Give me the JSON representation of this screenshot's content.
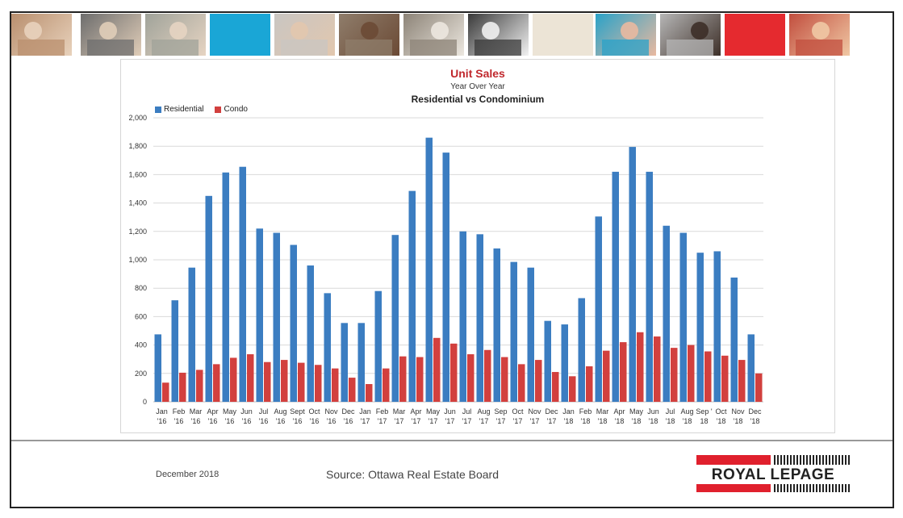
{
  "header": {
    "photos": [
      {
        "name": "family-photo",
        "bg": "#b98f6e",
        "fg": "#e8d2bc"
      },
      {
        "name": "phone-photo",
        "bg": "#6d6d6d",
        "fg": "#e0cdb8"
      },
      {
        "name": "couple-house-photo",
        "bg": "#a0a39a",
        "fg": "#e6d4c2"
      },
      {
        "name": "blue-tile",
        "bg": "#1aa6d6",
        "fg": "#1aa6d6"
      },
      {
        "name": "woman-phone-photo",
        "bg": "#c9c6c2",
        "fg": "#e2c7ae"
      },
      {
        "name": "couple-photo",
        "bg": "#8f7d6b",
        "fg": "#6b4a35"
      },
      {
        "name": "house-photo",
        "bg": "#8d8478",
        "fg": "#ece7df"
      },
      {
        "name": "signing-photo",
        "bg": "#3a3a3a",
        "fg": "#f1f1f1"
      },
      {
        "name": "beige-tile",
        "bg": "#ece4d6",
        "fg": "#ece4d6"
      },
      {
        "name": "pool-photo",
        "bg": "#2aa2c8",
        "fg": "#e9b9a0"
      },
      {
        "name": "meeting-photo",
        "bg": "#b6b6b6",
        "fg": "#3d2f28"
      },
      {
        "name": "red-tile",
        "bg": "#e52a2f",
        "fg": "#e52a2f"
      },
      {
        "name": "kids-photo",
        "bg": "#c24e3e",
        "fg": "#f0c8a4"
      }
    ]
  },
  "chart": {
    "title": "Unit Sales",
    "subtitle": "Year Over Year",
    "subtitle2": "Residential vs Condominium",
    "legend": [
      {
        "label": "Residential",
        "color": "#3b7dc1"
      },
      {
        "label": "Condo",
        "color": "#d2403e"
      }
    ]
  },
  "chart_data": {
    "type": "bar",
    "categories": [
      [
        "Jan",
        "'16"
      ],
      [
        "Feb",
        "'16"
      ],
      [
        "Mar",
        "'16"
      ],
      [
        "Apr",
        "'16"
      ],
      [
        "May",
        "'16"
      ],
      [
        "Jun",
        "'16"
      ],
      [
        "Jul",
        "'16"
      ],
      [
        "Aug",
        "'16"
      ],
      [
        "Sept",
        "'16"
      ],
      [
        "Oct",
        "'16"
      ],
      [
        "Nov",
        "'16"
      ],
      [
        "Dec",
        "'16"
      ],
      [
        "Jan",
        "'17"
      ],
      [
        "Feb",
        "'17"
      ],
      [
        "Mar",
        "'17"
      ],
      [
        "Apr",
        "'17"
      ],
      [
        "May",
        "'17"
      ],
      [
        "Jun",
        "'17"
      ],
      [
        "Jul",
        "'17"
      ],
      [
        "Aug",
        "'17"
      ],
      [
        "Sep",
        "'17"
      ],
      [
        "Oct",
        "'17"
      ],
      [
        "Nov",
        "'17"
      ],
      [
        "Dec",
        "'17"
      ],
      [
        "Jan",
        "'18"
      ],
      [
        "Feb",
        "'18"
      ],
      [
        "Mar",
        "'18"
      ],
      [
        "Apr",
        "'18"
      ],
      [
        "May",
        "'18"
      ],
      [
        "Jun",
        "'18"
      ],
      [
        "Jul",
        "'18"
      ],
      [
        "Aug",
        "'18"
      ],
      [
        "Sep '",
        "18"
      ],
      [
        "Oct",
        "'18"
      ],
      [
        "Nov",
        "'18"
      ],
      [
        "Dec",
        "'18"
      ]
    ],
    "series": [
      {
        "name": "Residential",
        "color": "#3b7dc1",
        "values": [
          475,
          715,
          945,
          1450,
          1615,
          1655,
          1220,
          1190,
          1105,
          960,
          765,
          555,
          555,
          780,
          1175,
          1485,
          1860,
          1755,
          1200,
          1180,
          1080,
          985,
          945,
          570,
          545,
          730,
          1305,
          1620,
          1795,
          1620,
          1240,
          1190,
          1050,
          1060,
          875,
          475
        ]
      },
      {
        "name": "Condo",
        "color": "#d2403e",
        "values": [
          135,
          205,
          225,
          265,
          310,
          335,
          280,
          295,
          275,
          260,
          235,
          170,
          125,
          235,
          320,
          315,
          450,
          410,
          335,
          365,
          315,
          265,
          295,
          210,
          180,
          250,
          360,
          420,
          490,
          460,
          380,
          400,
          355,
          325,
          295,
          200
        ]
      }
    ],
    "ylim": [
      0,
      2000
    ],
    "yticks": [
      0,
      200,
      400,
      600,
      800,
      1000,
      1200,
      1400,
      1600,
      1800,
      2000
    ],
    "ytick_labels": [
      "0",
      "200",
      "400",
      "600",
      "800",
      "1,000",
      "1,200",
      "1,400",
      "1,600",
      "1,800",
      "2,000"
    ],
    "grid": true,
    "legend_position": "top-left"
  },
  "footer": {
    "date": "December 2018",
    "source": "Source: Ottawa Real Estate Board",
    "logo_text": "ROYAL LEPAGE"
  }
}
